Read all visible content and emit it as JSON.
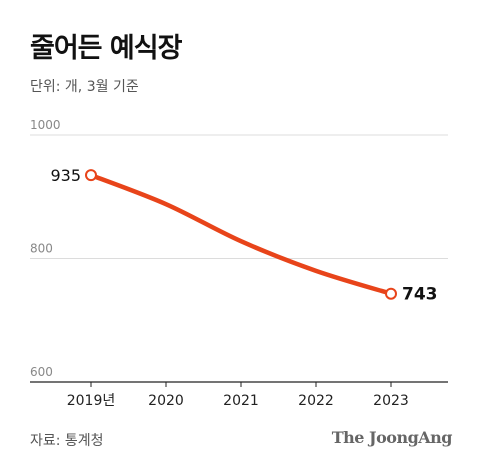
{
  "title": "줄어든 예식장",
  "unit_label": "단위: 개, 3월 기준",
  "source_label": "자료: 통계청",
  "logo_text": "The JoongAng",
  "chart_data": {
    "type": "line",
    "title": "줄어든 예식장",
    "categories": [
      "2019년",
      "2020",
      "2021",
      "2022",
      "2023"
    ],
    "series": [
      {
        "values": [
          935,
          888,
          828,
          780,
          743
        ]
      }
    ],
    "ylim": [
      600,
      1000
    ],
    "yticks": [
      1000,
      800,
      600
    ],
    "data_labels": [
      {
        "index": 0,
        "text": "935"
      },
      {
        "index": 4,
        "text": "743"
      }
    ],
    "grid": true,
    "line_color": "#e8441a"
  }
}
